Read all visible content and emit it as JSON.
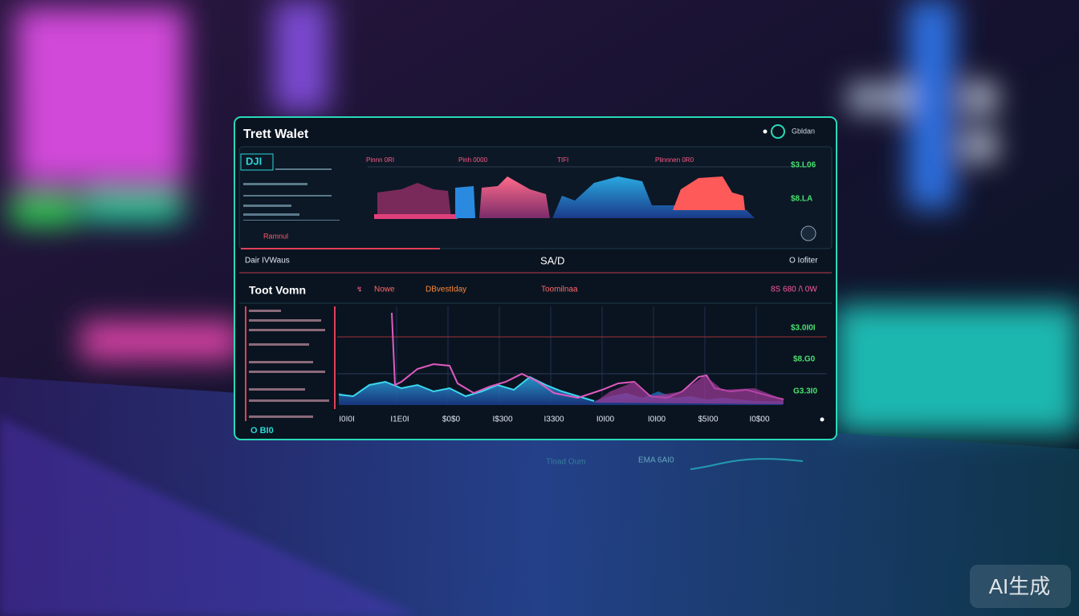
{
  "header": {
    "title": "Trett Walet",
    "account": "Gbldan"
  },
  "top_chart": {
    "badge": "DJI",
    "labels": [
      "Pinnn 0RI",
      "Pinh 0000",
      "TIFI",
      "Plinnnen 0R0"
    ],
    "values": [
      "$3.L06",
      "$8.LA"
    ],
    "footer": "Ramnul"
  },
  "bar": {
    "left": "Dair IVWaus",
    "center": "SA/D",
    "right": "O Iofiter"
  },
  "main_chart": {
    "title": "Toot Vomn",
    "tabs": [
      "Nowe",
      "DBvestIday",
      "Toomilnaa"
    ],
    "range": "8S 680 /\\ 0W",
    "values": [
      "$3.0I0I",
      "$8.G0",
      "G3.3I0"
    ],
    "x_labels": [
      "I0I0I",
      "I1E0I",
      "$0$0",
      "I$300",
      "I3300",
      "I0I00",
      "I0I00",
      "$5I00",
      "I0$00"
    ],
    "footer": "O BI0"
  },
  "reflection": [
    "Tload Oum",
    "EMA 6AI0"
  ],
  "watermark": "AI生成"
}
